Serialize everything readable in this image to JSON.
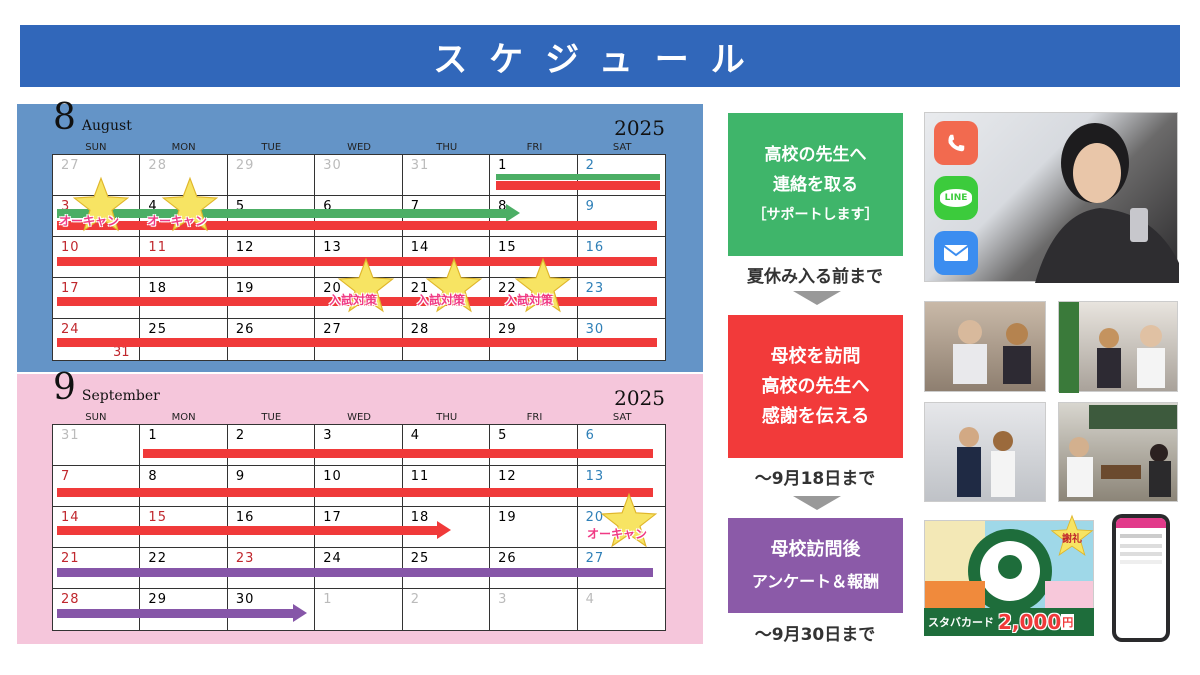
{
  "title": "スケジュール",
  "august": {
    "month_num": "8",
    "month_name": "August",
    "year": "2025",
    "dow": [
      "SUN",
      "MON",
      "TUE",
      "WED",
      "THU",
      "FRI",
      "SAT"
    ],
    "weeks": [
      [
        {
          "d": "27",
          "t": "other"
        },
        {
          "d": "28",
          "t": "other"
        },
        {
          "d": "29",
          "t": "other"
        },
        {
          "d": "30",
          "t": "other"
        },
        {
          "d": "31",
          "t": "other"
        },
        {
          "d": "1",
          "t": ""
        },
        {
          "d": "2",
          "t": "sat"
        }
      ],
      [
        {
          "d": "3",
          "t": "sun"
        },
        {
          "d": "4",
          "t": ""
        },
        {
          "d": "5",
          "t": ""
        },
        {
          "d": "6",
          "t": ""
        },
        {
          "d": "7",
          "t": ""
        },
        {
          "d": "8",
          "t": ""
        },
        {
          "d": "9",
          "t": "sat"
        }
      ],
      [
        {
          "d": "10",
          "t": "sun"
        },
        {
          "d": "11",
          "t": "sun"
        },
        {
          "d": "12",
          "t": ""
        },
        {
          "d": "13",
          "t": ""
        },
        {
          "d": "14",
          "t": ""
        },
        {
          "d": "15",
          "t": ""
        },
        {
          "d": "16",
          "t": "sat"
        }
      ],
      [
        {
          "d": "17",
          "t": "sun"
        },
        {
          "d": "18",
          "t": ""
        },
        {
          "d": "19",
          "t": ""
        },
        {
          "d": "20",
          "t": ""
        },
        {
          "d": "21",
          "t": ""
        },
        {
          "d": "22",
          "t": ""
        },
        {
          "d": "23",
          "t": "sat"
        }
      ],
      [
        {
          "d": "24",
          "t": "sun"
        },
        {
          "d": "25",
          "t": ""
        },
        {
          "d": "26",
          "t": ""
        },
        {
          "d": "27",
          "t": ""
        },
        {
          "d": "28",
          "t": ""
        },
        {
          "d": "29",
          "t": ""
        },
        {
          "d": "30",
          "t": "sat"
        }
      ]
    ],
    "extra_day": "31",
    "tags": {
      "open_campus": "オーキャン",
      "exam_prep": "入試対策"
    }
  },
  "september": {
    "month_num": "9",
    "month_name": "September",
    "year": "2025",
    "dow": [
      "SUN",
      "MON",
      "TUE",
      "WED",
      "THU",
      "FRI",
      "SAT"
    ],
    "weeks": [
      [
        {
          "d": "31",
          "t": "other"
        },
        {
          "d": "1",
          "t": ""
        },
        {
          "d": "2",
          "t": ""
        },
        {
          "d": "3",
          "t": ""
        },
        {
          "d": "4",
          "t": ""
        },
        {
          "d": "5",
          "t": ""
        },
        {
          "d": "6",
          "t": "sat"
        }
      ],
      [
        {
          "d": "7",
          "t": "sun"
        },
        {
          "d": "8",
          "t": ""
        },
        {
          "d": "9",
          "t": ""
        },
        {
          "d": "10",
          "t": ""
        },
        {
          "d": "11",
          "t": ""
        },
        {
          "d": "12",
          "t": ""
        },
        {
          "d": "13",
          "t": "sat"
        }
      ],
      [
        {
          "d": "14",
          "t": "sun"
        },
        {
          "d": "15",
          "t": "sun"
        },
        {
          "d": "16",
          "t": ""
        },
        {
          "d": "17",
          "t": ""
        },
        {
          "d": "18",
          "t": ""
        },
        {
          "d": "19",
          "t": ""
        },
        {
          "d": "20",
          "t": "sat"
        }
      ],
      [
        {
          "d": "21",
          "t": "sun"
        },
        {
          "d": "22",
          "t": ""
        },
        {
          "d": "23",
          "t": "sun"
        },
        {
          "d": "24",
          "t": ""
        },
        {
          "d": "25",
          "t": ""
        },
        {
          "d": "26",
          "t": ""
        },
        {
          "d": "27",
          "t": "sat"
        }
      ],
      [
        {
          "d": "28",
          "t": "sun"
        },
        {
          "d": "29",
          "t": ""
        },
        {
          "d": "30",
          "t": ""
        },
        {
          "d": "1",
          "t": "other"
        },
        {
          "d": "2",
          "t": "other"
        },
        {
          "d": "3",
          "t": "other"
        },
        {
          "d": "4",
          "t": "other"
        }
      ]
    ],
    "tags": {
      "open_campus": "オーキャン"
    }
  },
  "steps": [
    {
      "lines": [
        "高校の先生へ",
        "連絡を取る",
        "［サポートします］"
      ],
      "deadline": "夏休み入る前まで",
      "color": "#3fb56a"
    },
    {
      "lines": [
        "母校を訪問",
        "高校の先生へ",
        "感謝を伝える"
      ],
      "deadline": "〜9月18日まで",
      "color": "#f23a3a"
    },
    {
      "lines": [
        "母校訪問後",
        "アンケート＆報酬"
      ],
      "deadline": "〜9月30日まで",
      "color": "#8b5aa8"
    }
  ],
  "icons": {
    "line_label": "LINE"
  },
  "reward": {
    "label": "スタバカード",
    "amount": "2,000",
    "unit": "円",
    "thanks": "謝礼"
  },
  "colors": {
    "header": "#3167ba",
    "aug_bg": "#6494c7",
    "sep_bg": "#f5c6db",
    "red": "#f03a3a",
    "green": "#4cae65",
    "purple": "#8656a8",
    "star": "#f7e463"
  }
}
